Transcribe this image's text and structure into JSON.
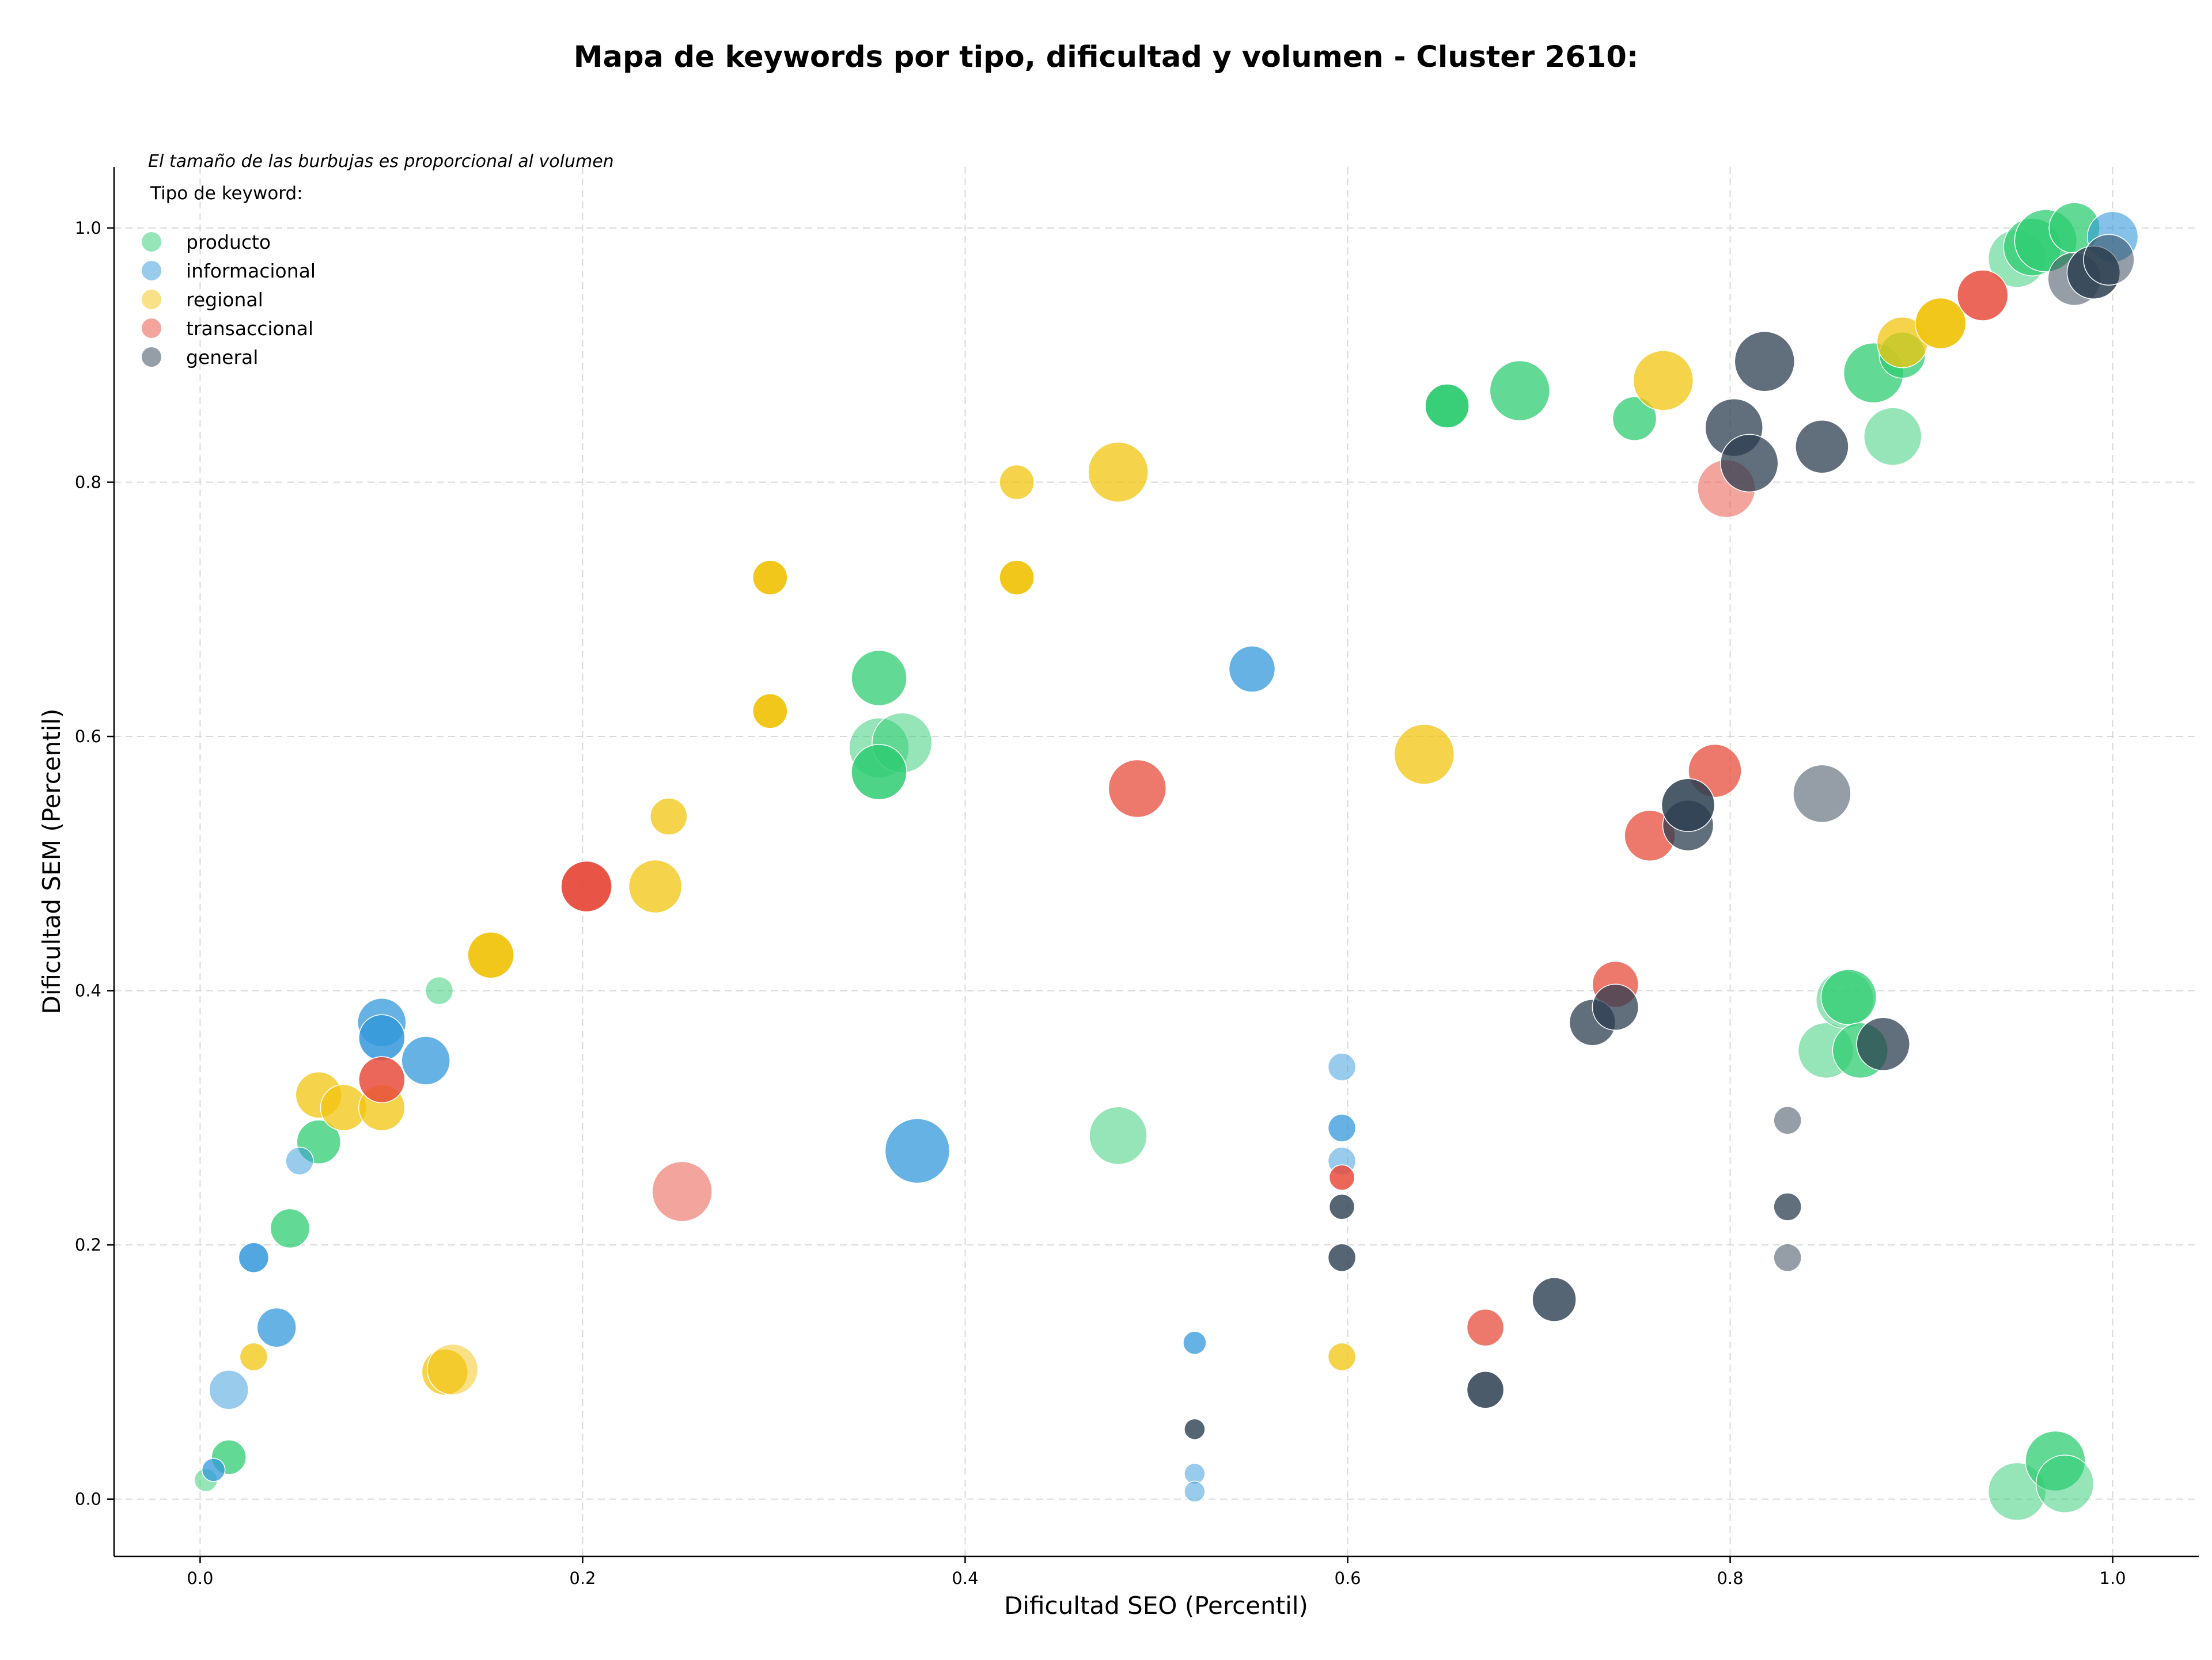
{
  "chart_data": {
    "type": "scatter",
    "title": "Mapa de keywords por tipo, dificultad y volumen - Cluster 2610:",
    "xlabel": "Dificultad SEO (Percentil)",
    "ylabel": "Dificultad SEM (Percentil)",
    "xlim": [
      -0.045,
      1.045
    ],
    "ylim": [
      -0.045,
      1.048
    ],
    "xticks": [
      "0.0",
      "0.2",
      "0.4",
      "0.6",
      "0.8",
      "1.0"
    ],
    "yticks": [
      "0.0",
      "0.2",
      "0.4",
      "0.6",
      "0.8",
      "1.0"
    ],
    "grid": true,
    "note": "El tamaño de las burbujas es proporcional al volumen",
    "legend_title": "Tipo de keyword:",
    "legend_position": "top-left",
    "series": [
      {
        "name": "producto",
        "color": "#2ecc71",
        "points": [
          [
            0.003,
            0.015,
            20,
            0.5
          ],
          [
            0.015,
            0.033,
            30,
            0.75
          ],
          [
            0.047,
            0.213,
            34,
            0.75
          ],
          [
            0.062,
            0.281,
            38,
            0.75
          ],
          [
            0.125,
            0.4,
            24,
            0.5
          ],
          [
            0.355,
            0.646,
            48,
            0.75
          ],
          [
            0.355,
            0.591,
            52,
            0.5
          ],
          [
            0.367,
            0.595,
            52,
            0.5
          ],
          [
            0.355,
            0.572,
            48,
            0.85
          ],
          [
            0.48,
            0.286,
            50,
            0.5
          ],
          [
            0.652,
            0.86,
            38,
            0.95
          ],
          [
            0.69,
            0.872,
            52,
            0.75
          ],
          [
            0.75,
            0.85,
            38,
            0.75
          ],
          [
            0.875,
            0.886,
            52,
            0.75
          ],
          [
            0.89,
            0.9,
            40,
            0.75
          ],
          [
            0.885,
            0.836,
            50,
            0.5
          ],
          [
            0.85,
            0.353,
            48,
            0.5
          ],
          [
            0.86,
            0.393,
            50,
            0.5
          ],
          [
            0.862,
            0.395,
            48,
            0.75
          ],
          [
            0.868,
            0.353,
            48,
            0.75
          ],
          [
            0.95,
            0.976,
            50,
            0.5
          ],
          [
            0.958,
            0.985,
            50,
            0.75
          ],
          [
            0.965,
            0.99,
            54,
            0.75
          ],
          [
            0.98,
            1.0,
            44,
            0.75
          ],
          [
            0.95,
            0.006,
            50,
            0.5
          ],
          [
            0.97,
            0.03,
            52,
            0.75
          ],
          [
            0.975,
            0.012,
            50,
            0.5
          ]
        ]
      },
      {
        "name": "informacional",
        "color": "#3498db",
        "points": [
          [
            0.007,
            0.023,
            20,
            0.75
          ],
          [
            0.015,
            0.086,
            34,
            0.5
          ],
          [
            0.028,
            0.19,
            26,
            0.85
          ],
          [
            0.04,
            0.135,
            34,
            0.75
          ],
          [
            0.052,
            0.266,
            24,
            0.5
          ],
          [
            0.095,
            0.375,
            42,
            0.75
          ],
          [
            0.095,
            0.363,
            40,
            0.85
          ],
          [
            0.118,
            0.345,
            42,
            0.75
          ],
          [
            0.375,
            0.274,
            56,
            0.75
          ],
          [
            0.55,
            0.653,
            40,
            0.75
          ],
          [
            0.52,
            0.123,
            20,
            0.75
          ],
          [
            0.52,
            0.02,
            18,
            0.5
          ],
          [
            0.52,
            0.006,
            18,
            0.5
          ],
          [
            0.597,
            0.34,
            24,
            0.5
          ],
          [
            0.597,
            0.292,
            24,
            0.75
          ],
          [
            0.597,
            0.266,
            24,
            0.5
          ],
          [
            1.0,
            0.993,
            44,
            0.6
          ]
        ]
      },
      {
        "name": "regional",
        "color": "#f1c40f",
        "points": [
          [
            0.028,
            0.112,
            24,
            0.75
          ],
          [
            0.062,
            0.318,
            40,
            0.75
          ],
          [
            0.075,
            0.308,
            40,
            0.75
          ],
          [
            0.095,
            0.308,
            40,
            0.75
          ],
          [
            0.128,
            0.1,
            40,
            0.75
          ],
          [
            0.132,
            0.102,
            44,
            0.5
          ],
          [
            0.152,
            0.428,
            40,
            0.95
          ],
          [
            0.238,
            0.482,
            46,
            0.75
          ],
          [
            0.245,
            0.537,
            32,
            0.75
          ],
          [
            0.298,
            0.725,
            30,
            0.95
          ],
          [
            0.298,
            0.62,
            30,
            0.95
          ],
          [
            0.427,
            0.8,
            30,
            0.75
          ],
          [
            0.427,
            0.725,
            30,
            0.95
          ],
          [
            0.48,
            0.808,
            52,
            0.75
          ],
          [
            0.64,
            0.586,
            52,
            0.75
          ],
          [
            0.597,
            0.112,
            24,
            0.75
          ],
          [
            0.765,
            0.88,
            52,
            0.75
          ],
          [
            0.89,
            0.91,
            44,
            0.75
          ],
          [
            0.91,
            0.925,
            44,
            0.95
          ]
        ]
      },
      {
        "name": "transaccional",
        "color": "#e74c3c",
        "points": [
          [
            0.095,
            0.33,
            40,
            0.85
          ],
          [
            0.202,
            0.482,
            44,
            0.95
          ],
          [
            0.252,
            0.242,
            52,
            0.5
          ],
          [
            0.49,
            0.559,
            50,
            0.75
          ],
          [
            0.597,
            0.253,
            22,
            0.85
          ],
          [
            0.672,
            0.135,
            32,
            0.75
          ],
          [
            0.74,
            0.405,
            40,
            0.75
          ],
          [
            0.758,
            0.522,
            44,
            0.75
          ],
          [
            0.792,
            0.573,
            46,
            0.75
          ],
          [
            0.798,
            0.795,
            50,
            0.5
          ],
          [
            0.932,
            0.947,
            44,
            0.85
          ]
        ]
      },
      {
        "name": "general",
        "color": "#2c3e50",
        "points": [
          [
            0.52,
            0.055,
            18,
            0.8
          ],
          [
            0.597,
            0.23,
            22,
            0.8
          ],
          [
            0.597,
            0.19,
            24,
            0.8
          ],
          [
            0.672,
            0.086,
            32,
            0.85
          ],
          [
            0.708,
            0.157,
            38,
            0.8
          ],
          [
            0.728,
            0.375,
            40,
            0.75
          ],
          [
            0.74,
            0.387,
            40,
            0.75
          ],
          [
            0.778,
            0.53,
            44,
            0.75
          ],
          [
            0.778,
            0.546,
            46,
            0.85
          ],
          [
            0.802,
            0.843,
            50,
            0.75
          ],
          [
            0.81,
            0.815,
            50,
            0.75
          ],
          [
            0.818,
            0.895,
            52,
            0.75
          ],
          [
            0.848,
            0.828,
            46,
            0.75
          ],
          [
            0.848,
            0.555,
            50,
            0.5
          ],
          [
            0.83,
            0.298,
            24,
            0.5
          ],
          [
            0.83,
            0.23,
            24,
            0.75
          ],
          [
            0.83,
            0.19,
            24,
            0.5
          ],
          [
            0.88,
            0.358,
            46,
            0.75
          ],
          [
            0.98,
            0.96,
            46,
            0.5
          ],
          [
            0.99,
            0.965,
            46,
            0.85
          ],
          [
            0.998,
            0.975,
            44,
            0.5
          ]
        ]
      }
    ]
  }
}
